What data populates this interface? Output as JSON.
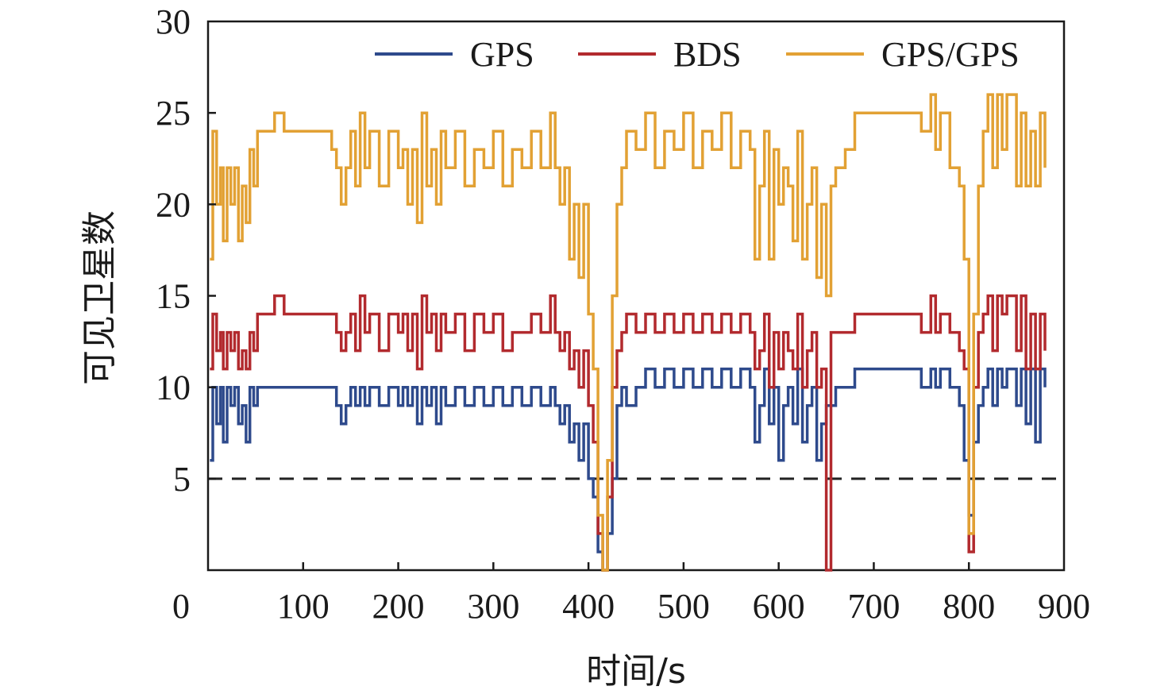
{
  "chart_data": {
    "type": "line",
    "title": "",
    "xlabel": "时间/s",
    "ylabel": "可见卫星数",
    "xlim": [
      0,
      900
    ],
    "ylim": [
      0,
      30
    ],
    "xticks": [
      0,
      100,
      200,
      300,
      400,
      500,
      600,
      700,
      800,
      900
    ],
    "yticks": [
      5,
      10,
      15,
      20,
      25,
      30
    ],
    "xtick_labels": [
      "0",
      "100",
      "200",
      "300",
      "400",
      "500",
      "600",
      "700",
      "800",
      "900"
    ],
    "ytick_labels": [
      "5",
      "10",
      "15",
      "20",
      "25",
      "30"
    ],
    "origin_label": "0",
    "grid": false,
    "legend_position": "top-right",
    "threshold": {
      "y": 5,
      "style": "dashed",
      "color": "#222222"
    },
    "series": [
      {
        "name": "GPS",
        "color": "#2e4a8c",
        "x": [
          2,
          5,
          9,
          13,
          16,
          20,
          24,
          28,
          32,
          36,
          40,
          44,
          48,
          52,
          60,
          70,
          80,
          100,
          120,
          130,
          135,
          140,
          145,
          150,
          155,
          160,
          165,
          170,
          180,
          190,
          200,
          205,
          210,
          215,
          220,
          225,
          230,
          235,
          240,
          245,
          250,
          260,
          270,
          280,
          290,
          300,
          310,
          320,
          330,
          340,
          350,
          360,
          365,
          370,
          375,
          380,
          385,
          390,
          395,
          400,
          405,
          410,
          415,
          420,
          425,
          430,
          435,
          440,
          450,
          460,
          470,
          480,
          490,
          500,
          510,
          520,
          530,
          540,
          550,
          560,
          570,
          575,
          580,
          585,
          590,
          595,
          600,
          605,
          610,
          615,
          620,
          625,
          630,
          635,
          640,
          645,
          650,
          655,
          660,
          670,
          680,
          700,
          720,
          740,
          750,
          760,
          765,
          770,
          780,
          790,
          795,
          800,
          805,
          810,
          815,
          820,
          825,
          830,
          835,
          840,
          850,
          855,
          860,
          865,
          870,
          875,
          880
        ],
        "y": [
          6,
          10,
          8,
          10,
          7,
          10,
          9,
          10,
          8,
          9,
          7,
          10,
          9,
          10,
          10,
          10,
          10,
          10,
          10,
          10,
          9,
          8,
          9,
          10,
          9,
          10,
          9,
          10,
          9,
          10,
          9,
          10,
          9,
          10,
          8,
          10,
          9,
          10,
          8,
          10,
          9,
          10,
          9,
          10,
          9,
          10,
          9,
          10,
          9,
          10,
          9,
          10,
          9,
          8,
          9,
          7,
          8,
          6,
          8,
          5,
          4,
          1,
          0,
          2,
          5,
          9,
          10,
          9,
          10,
          11,
          10,
          11,
          10,
          11,
          10,
          11,
          10,
          11,
          10,
          11,
          10,
          7,
          9,
          11,
          8,
          10,
          6,
          9,
          10,
          8,
          11,
          7,
          9,
          10,
          6,
          8,
          9,
          9,
          10,
          10,
          11,
          11,
          11,
          11,
          10,
          11,
          10,
          11,
          10,
          9,
          6,
          3,
          7,
          9,
          10,
          11,
          9,
          11,
          10,
          11,
          9,
          11,
          8,
          11,
          7,
          11,
          10
        ]
      },
      {
        "name": "BDS",
        "color": "#b22a2e",
        "x": [
          2,
          5,
          9,
          13,
          16,
          20,
          24,
          28,
          32,
          36,
          40,
          44,
          48,
          52,
          60,
          70,
          80,
          100,
          120,
          130,
          135,
          140,
          145,
          150,
          155,
          160,
          165,
          170,
          180,
          190,
          200,
          205,
          210,
          215,
          220,
          225,
          230,
          235,
          240,
          245,
          250,
          260,
          270,
          280,
          290,
          300,
          310,
          320,
          330,
          340,
          350,
          360,
          365,
          370,
          375,
          380,
          385,
          390,
          395,
          400,
          405,
          410,
          415,
          420,
          425,
          430,
          435,
          440,
          450,
          460,
          470,
          480,
          490,
          500,
          510,
          520,
          530,
          540,
          550,
          560,
          570,
          575,
          580,
          585,
          590,
          595,
          600,
          605,
          610,
          615,
          620,
          625,
          630,
          635,
          640,
          645,
          650,
          655,
          660,
          670,
          680,
          700,
          720,
          740,
          750,
          760,
          765,
          770,
          780,
          790,
          795,
          800,
          805,
          810,
          815,
          820,
          825,
          830,
          835,
          840,
          850,
          855,
          860,
          865,
          870,
          875,
          880
        ],
        "y": [
          11,
          14,
          12,
          13,
          11,
          13,
          12,
          13,
          11,
          12,
          11,
          13,
          12,
          14,
          14,
          15,
          14,
          14,
          14,
          14,
          13,
          12,
          13,
          14,
          12,
          15,
          13,
          14,
          12,
          14,
          13,
          14,
          12,
          14,
          11,
          15,
          13,
          14,
          12,
          14,
          13,
          14,
          12,
          14,
          13,
          14,
          12,
          13,
          13,
          14,
          13,
          15,
          13,
          12,
          13,
          11,
          12,
          10,
          12,
          9,
          7,
          2,
          0,
          4,
          10,
          12,
          13,
          14,
          13,
          14,
          13,
          14,
          13,
          14,
          13,
          14,
          13,
          14,
          13,
          14,
          13,
          11,
          12,
          14,
          10,
          13,
          11,
          13,
          12,
          11,
          14,
          10,
          12,
          13,
          10,
          11,
          0,
          13,
          13,
          13,
          14,
          14,
          14,
          14,
          13,
          15,
          13,
          14,
          13,
          12,
          11,
          1,
          10,
          13,
          14,
          15,
          12,
          15,
          14,
          15,
          12,
          15,
          11,
          14,
          11,
          14,
          12
        ]
      },
      {
        "name": "GPS/GPS",
        "color": "#e2a134",
        "x": [
          2,
          5,
          9,
          13,
          16,
          20,
          24,
          28,
          32,
          36,
          40,
          44,
          48,
          52,
          60,
          70,
          80,
          100,
          120,
          130,
          135,
          140,
          145,
          150,
          155,
          160,
          165,
          170,
          180,
          190,
          200,
          205,
          210,
          215,
          220,
          225,
          230,
          235,
          240,
          245,
          250,
          260,
          270,
          280,
          290,
          300,
          310,
          320,
          330,
          340,
          350,
          360,
          365,
          370,
          375,
          380,
          385,
          390,
          395,
          400,
          405,
          410,
          415,
          420,
          425,
          430,
          435,
          440,
          450,
          460,
          470,
          480,
          490,
          500,
          510,
          520,
          530,
          540,
          550,
          560,
          570,
          575,
          580,
          585,
          590,
          595,
          600,
          605,
          610,
          615,
          620,
          625,
          630,
          635,
          640,
          645,
          650,
          655,
          660,
          670,
          680,
          700,
          720,
          740,
          750,
          760,
          765,
          770,
          780,
          790,
          795,
          800,
          805,
          810,
          815,
          820,
          825,
          830,
          835,
          840,
          850,
          855,
          860,
          865,
          870,
          875,
          880
        ],
        "y": [
          17,
          24,
          20,
          22,
          18,
          22,
          20,
          22,
          18,
          21,
          19,
          23,
          21,
          24,
          24,
          25,
          24,
          24,
          24,
          23,
          22,
          20,
          22,
          24,
          21,
          25,
          22,
          24,
          21,
          24,
          22,
          23,
          20,
          23,
          19,
          25,
          21,
          23,
          20,
          24,
          22,
          24,
          21,
          23,
          22,
          24,
          21,
          23,
          22,
          24,
          22,
          25,
          22,
          20,
          22,
          17,
          20,
          16,
          20,
          14,
          11,
          3,
          0,
          6,
          15,
          20,
          22,
          24,
          23,
          25,
          22,
          24,
          23,
          25,
          22,
          24,
          23,
          25,
          22,
          24,
          23,
          17,
          21,
          24,
          17,
          23,
          20,
          22,
          21,
          18,
          24,
          17,
          20,
          22,
          16,
          20,
          15,
          21,
          22,
          23,
          25,
          25,
          25,
          25,
          24,
          26,
          23,
          25,
          22,
          21,
          17,
          2,
          14,
          21,
          24,
          26,
          22,
          26,
          23,
          26,
          21,
          25,
          21,
          24,
          21,
          25,
          22
        ]
      }
    ]
  }
}
